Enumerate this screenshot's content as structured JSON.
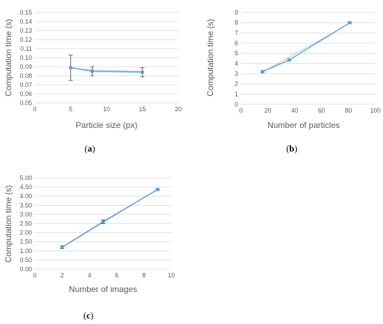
{
  "colors": {
    "series": "#5b9bd5",
    "grid": "#d9d9d9",
    "text": "#595959"
  },
  "chart_data": [
    {
      "type": "line",
      "panel_label": "a",
      "xlabel": "Particle size (px)",
      "ylabel": "Computation time (s)",
      "xlim": [
        0,
        20
      ],
      "xticks": [
        0,
        5,
        10,
        15,
        20
      ],
      "ylim": [
        0.05,
        0.15
      ],
      "yticks": [
        0.05,
        0.06,
        0.07,
        0.08,
        0.09,
        0.1,
        0.11,
        0.12,
        0.13,
        0.14,
        0.15
      ],
      "ytick_decimals": 2,
      "grid": "horizontal",
      "x": [
        5,
        8,
        15
      ],
      "y": [
        0.089,
        0.085,
        0.084
      ],
      "error": [
        0.014,
        0.005,
        0.005
      ],
      "trendline": {
        "style": "dotted",
        "x": [
          5,
          8,
          15
        ],
        "y": [
          0.0885,
          0.0865,
          0.0848
        ]
      }
    },
    {
      "type": "line",
      "panel_label": "b",
      "xlabel": "Number of particles",
      "ylabel": "Computation time (s)",
      "xlim": [
        0,
        100
      ],
      "xticks": [
        0,
        20,
        40,
        60,
        80,
        100
      ],
      "ylim": [
        0,
        9
      ],
      "yticks": [
        0,
        1,
        2,
        3,
        4,
        5,
        6,
        7,
        8,
        9
      ],
      "ytick_decimals": 0,
      "grid": "horizontal",
      "x": [
        16,
        36,
        81
      ],
      "y": [
        3.2,
        4.35,
        8.0
      ],
      "error": [
        0.12,
        0.1,
        0.1
      ],
      "trendline": {
        "style": "dotted",
        "x": [
          16,
          81
        ],
        "y": [
          3.15,
          7.95
        ]
      }
    },
    {
      "type": "line",
      "panel_label": "c",
      "xlabel": "Number of images",
      "ylabel": "Computation time (s)",
      "xlim": [
        0,
        10
      ],
      "xticks": [
        0,
        2,
        4,
        6,
        8,
        10
      ],
      "ylim": [
        0,
        5
      ],
      "yticks": [
        0,
        0.5,
        1,
        1.5,
        2,
        2.5,
        3,
        3.5,
        4,
        4.5,
        5
      ],
      "ytick_decimals": 2,
      "grid": "horizontal",
      "x": [
        2,
        5,
        9
      ],
      "y": [
        1.2,
        2.6,
        4.37
      ],
      "error": [
        0.08,
        0.1,
        0.03
      ],
      "trendline": {
        "style": "dotted",
        "x": [
          2,
          9
        ],
        "y": [
          1.18,
          4.38
        ]
      }
    }
  ]
}
